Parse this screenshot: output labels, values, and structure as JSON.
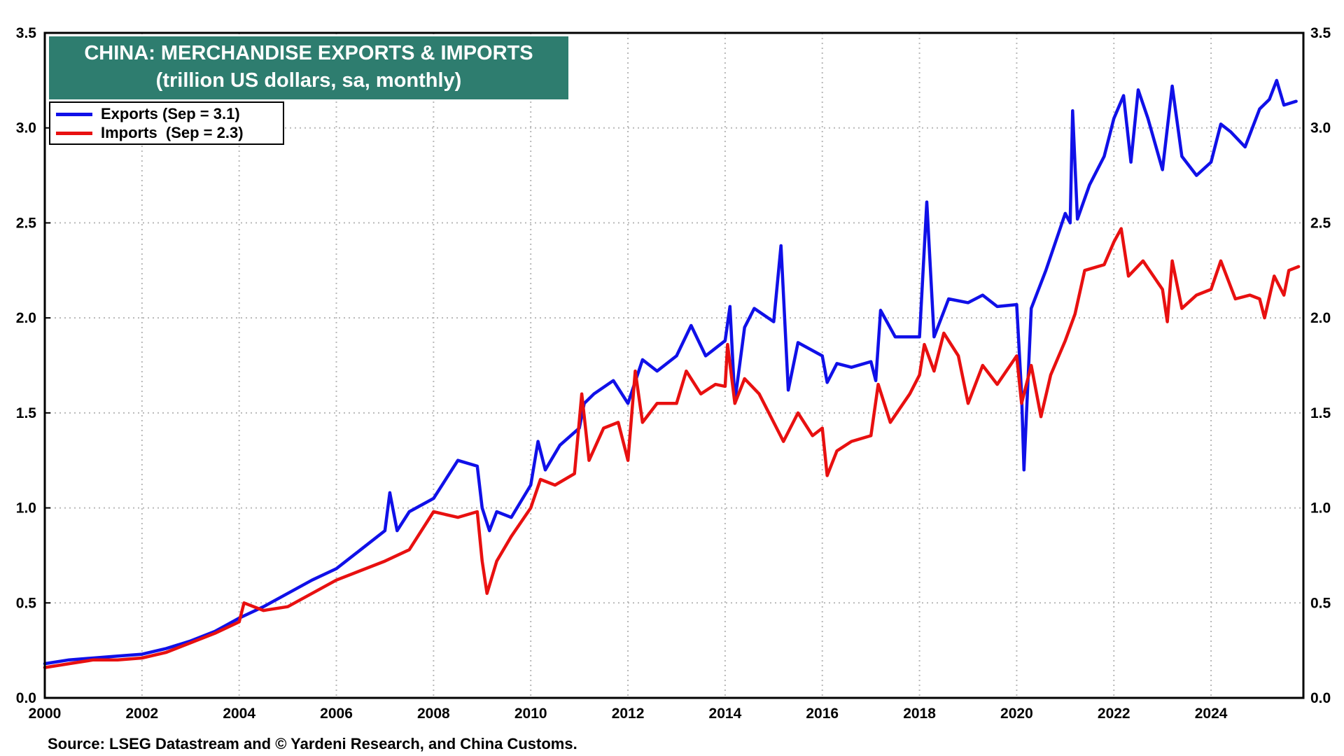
{
  "chart_data": {
    "type": "line",
    "title": "CHINA: MERCHANDISE EXPORTS & IMPORTS",
    "subtitle": "(trillion US dollars, sa, monthly)",
    "xlabel": "",
    "ylabel": "",
    "xlim": [
      2000,
      2025.9
    ],
    "ylim": [
      0,
      3.5
    ],
    "x_ticks": [
      "2000",
      "2002",
      "2004",
      "2006",
      "2008",
      "2010",
      "2012",
      "2014",
      "2016",
      "2018",
      "2020",
      "2022",
      "2024"
    ],
    "y_ticks": [
      "0.0",
      "0.5",
      "1.0",
      "1.5",
      "2.0",
      "2.5",
      "3.0",
      "3.5"
    ],
    "grid": true,
    "legend_position": "top-left",
    "series": [
      {
        "name": "Exports (Sep = 3.1)",
        "color": "#1010e8",
        "points": [
          [
            2000.0,
            0.18
          ],
          [
            2000.5,
            0.2
          ],
          [
            2001.0,
            0.21
          ],
          [
            2001.5,
            0.22
          ],
          [
            2002.0,
            0.23
          ],
          [
            2002.5,
            0.26
          ],
          [
            2003.0,
            0.3
          ],
          [
            2003.5,
            0.35
          ],
          [
            2004.0,
            0.42
          ],
          [
            2004.5,
            0.48
          ],
          [
            2005.0,
            0.55
          ],
          [
            2005.5,
            0.62
          ],
          [
            2006.0,
            0.68
          ],
          [
            2006.5,
            0.78
          ],
          [
            2007.0,
            0.88
          ],
          [
            2007.1,
            1.08
          ],
          [
            2007.25,
            0.88
          ],
          [
            2007.5,
            0.98
          ],
          [
            2008.0,
            1.05
          ],
          [
            2008.5,
            1.25
          ],
          [
            2008.9,
            1.22
          ],
          [
            2009.0,
            1.0
          ],
          [
            2009.15,
            0.88
          ],
          [
            2009.3,
            0.98
          ],
          [
            2009.6,
            0.95
          ],
          [
            2010.0,
            1.12
          ],
          [
            2010.15,
            1.35
          ],
          [
            2010.3,
            1.2
          ],
          [
            2010.6,
            1.33
          ],
          [
            2011.0,
            1.42
          ],
          [
            2011.1,
            1.55
          ],
          [
            2011.3,
            1.6
          ],
          [
            2011.7,
            1.67
          ],
          [
            2012.0,
            1.55
          ],
          [
            2012.3,
            1.78
          ],
          [
            2012.6,
            1.72
          ],
          [
            2013.0,
            1.8
          ],
          [
            2013.3,
            1.96
          ],
          [
            2013.6,
            1.8
          ],
          [
            2014.0,
            1.88
          ],
          [
            2014.1,
            2.06
          ],
          [
            2014.2,
            1.56
          ],
          [
            2014.4,
            1.95
          ],
          [
            2014.6,
            2.05
          ],
          [
            2015.0,
            1.98
          ],
          [
            2015.15,
            2.38
          ],
          [
            2015.3,
            1.62
          ],
          [
            2015.5,
            1.87
          ],
          [
            2016.0,
            1.8
          ],
          [
            2016.1,
            1.66
          ],
          [
            2016.3,
            1.76
          ],
          [
            2016.6,
            1.74
          ],
          [
            2017.0,
            1.77
          ],
          [
            2017.1,
            1.67
          ],
          [
            2017.2,
            2.04
          ],
          [
            2017.5,
            1.9
          ],
          [
            2018.0,
            1.9
          ],
          [
            2018.15,
            2.61
          ],
          [
            2018.3,
            1.9
          ],
          [
            2018.6,
            2.1
          ],
          [
            2019.0,
            2.08
          ],
          [
            2019.3,
            2.12
          ],
          [
            2019.6,
            2.06
          ],
          [
            2020.0,
            2.07
          ],
          [
            2020.1,
            1.6
          ],
          [
            2020.15,
            1.2
          ],
          [
            2020.3,
            2.05
          ],
          [
            2020.6,
            2.25
          ],
          [
            2021.0,
            2.55
          ],
          [
            2021.1,
            2.5
          ],
          [
            2021.15,
            3.09
          ],
          [
            2021.25,
            2.52
          ],
          [
            2021.5,
            2.7
          ],
          [
            2021.8,
            2.85
          ],
          [
            2022.0,
            3.05
          ],
          [
            2022.2,
            3.17
          ],
          [
            2022.35,
            2.82
          ],
          [
            2022.5,
            3.2
          ],
          [
            2022.7,
            3.05
          ],
          [
            2023.0,
            2.78
          ],
          [
            2023.2,
            3.22
          ],
          [
            2023.4,
            2.85
          ],
          [
            2023.7,
            2.75
          ],
          [
            2024.0,
            2.82
          ],
          [
            2024.2,
            3.02
          ],
          [
            2024.4,
            2.98
          ],
          [
            2024.7,
            2.9
          ],
          [
            2025.0,
            3.1
          ],
          [
            2025.2,
            3.15
          ],
          [
            2025.35,
            3.25
          ],
          [
            2025.5,
            3.12
          ],
          [
            2025.75,
            3.14
          ]
        ]
      },
      {
        "name": "Imports  (Sep = 2.3)",
        "color": "#e81010",
        "points": [
          [
            2000.0,
            0.16
          ],
          [
            2000.5,
            0.18
          ],
          [
            2001.0,
            0.2
          ],
          [
            2001.5,
            0.2
          ],
          [
            2002.0,
            0.21
          ],
          [
            2002.5,
            0.24
          ],
          [
            2003.0,
            0.29
          ],
          [
            2003.5,
            0.34
          ],
          [
            2004.0,
            0.4
          ],
          [
            2004.1,
            0.5
          ],
          [
            2004.5,
            0.46
          ],
          [
            2005.0,
            0.48
          ],
          [
            2005.5,
            0.55
          ],
          [
            2006.0,
            0.62
          ],
          [
            2006.5,
            0.67
          ],
          [
            2007.0,
            0.72
          ],
          [
            2007.5,
            0.78
          ],
          [
            2008.0,
            0.98
          ],
          [
            2008.5,
            0.95
          ],
          [
            2008.9,
            0.98
          ],
          [
            2009.0,
            0.72
          ],
          [
            2009.1,
            0.55
          ],
          [
            2009.3,
            0.72
          ],
          [
            2009.6,
            0.85
          ],
          [
            2010.0,
            1.0
          ],
          [
            2010.2,
            1.15
          ],
          [
            2010.5,
            1.12
          ],
          [
            2010.9,
            1.18
          ],
          [
            2011.05,
            1.6
          ],
          [
            2011.2,
            1.25
          ],
          [
            2011.5,
            1.42
          ],
          [
            2011.8,
            1.45
          ],
          [
            2012.0,
            1.25
          ],
          [
            2012.15,
            1.72
          ],
          [
            2012.3,
            1.45
          ],
          [
            2012.6,
            1.55
          ],
          [
            2013.0,
            1.55
          ],
          [
            2013.2,
            1.72
          ],
          [
            2013.5,
            1.6
          ],
          [
            2013.8,
            1.65
          ],
          [
            2014.0,
            1.64
          ],
          [
            2014.05,
            1.86
          ],
          [
            2014.2,
            1.55
          ],
          [
            2014.4,
            1.68
          ],
          [
            2014.7,
            1.6
          ],
          [
            2015.0,
            1.45
          ],
          [
            2015.2,
            1.35
          ],
          [
            2015.5,
            1.5
          ],
          [
            2015.8,
            1.38
          ],
          [
            2016.0,
            1.42
          ],
          [
            2016.1,
            1.17
          ],
          [
            2016.3,
            1.3
          ],
          [
            2016.6,
            1.35
          ],
          [
            2017.0,
            1.38
          ],
          [
            2017.15,
            1.65
          ],
          [
            2017.4,
            1.45
          ],
          [
            2017.8,
            1.6
          ],
          [
            2018.0,
            1.7
          ],
          [
            2018.1,
            1.86
          ],
          [
            2018.3,
            1.72
          ],
          [
            2018.5,
            1.92
          ],
          [
            2018.8,
            1.8
          ],
          [
            2019.0,
            1.55
          ],
          [
            2019.3,
            1.75
          ],
          [
            2019.6,
            1.65
          ],
          [
            2020.0,
            1.8
          ],
          [
            2020.1,
            1.55
          ],
          [
            2020.3,
            1.75
          ],
          [
            2020.5,
            1.48
          ],
          [
            2020.7,
            1.7
          ],
          [
            2021.0,
            1.88
          ],
          [
            2021.2,
            2.02
          ],
          [
            2021.4,
            2.25
          ],
          [
            2021.8,
            2.28
          ],
          [
            2022.0,
            2.4
          ],
          [
            2022.15,
            2.47
          ],
          [
            2022.3,
            2.22
          ],
          [
            2022.6,
            2.3
          ],
          [
            2023.0,
            2.15
          ],
          [
            2023.1,
            1.98
          ],
          [
            2023.2,
            2.3
          ],
          [
            2023.4,
            2.05
          ],
          [
            2023.7,
            2.12
          ],
          [
            2024.0,
            2.15
          ],
          [
            2024.2,
            2.3
          ],
          [
            2024.5,
            2.1
          ],
          [
            2024.8,
            2.12
          ],
          [
            2025.0,
            2.1
          ],
          [
            2025.1,
            2.0
          ],
          [
            2025.3,
            2.22
          ],
          [
            2025.5,
            2.12
          ],
          [
            2025.6,
            2.25
          ],
          [
            2025.8,
            2.27
          ]
        ]
      }
    ],
    "source": "Source: LSEG Datastream and © Yardeni Research, and China Customs."
  }
}
